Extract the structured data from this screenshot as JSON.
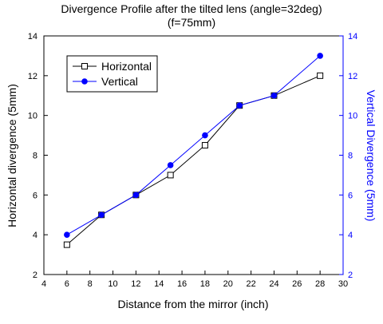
{
  "chart_data": {
    "type": "line",
    "title": "Divergence Profile after the tilted lens (angle=32deg)",
    "subtitle": "(f=75mm)",
    "xlabel": "Distance from the mirror (inch)",
    "ylabel": "Horizontal divergence (5mm)",
    "y2label": "Vertical Divergence (5mm)",
    "xlim": [
      4,
      30
    ],
    "ylim": [
      2,
      14
    ],
    "y2lim": [
      2,
      14
    ],
    "x_ticks": [
      4,
      6,
      8,
      10,
      12,
      14,
      16,
      18,
      20,
      22,
      24,
      26,
      28,
      30
    ],
    "y_ticks": [
      2,
      4,
      6,
      8,
      10,
      12,
      14
    ],
    "y2_ticks": [
      2,
      4,
      6,
      8,
      10,
      12,
      14
    ],
    "grid": false,
    "legend_position": "top-left",
    "series": [
      {
        "name": "Horizontal",
        "axis": "left",
        "color": "#000000",
        "marker": "open-square",
        "x": [
          6,
          9,
          12,
          15,
          18,
          21,
          24,
          28
        ],
        "y": [
          3.5,
          5.0,
          6.0,
          7.0,
          8.5,
          10.5,
          11.0,
          12.0
        ]
      },
      {
        "name": "Vertical",
        "axis": "right",
        "color": "#0000ff",
        "marker": "filled-circle",
        "x": [
          6,
          9,
          12,
          15,
          18,
          21,
          24,
          28
        ],
        "y": [
          4.0,
          5.0,
          6.0,
          7.5,
          9.0,
          10.5,
          11.0,
          13.0
        ]
      }
    ],
    "colors": {
      "left_axis": "#000000",
      "right_axis": "#0000ff"
    }
  }
}
